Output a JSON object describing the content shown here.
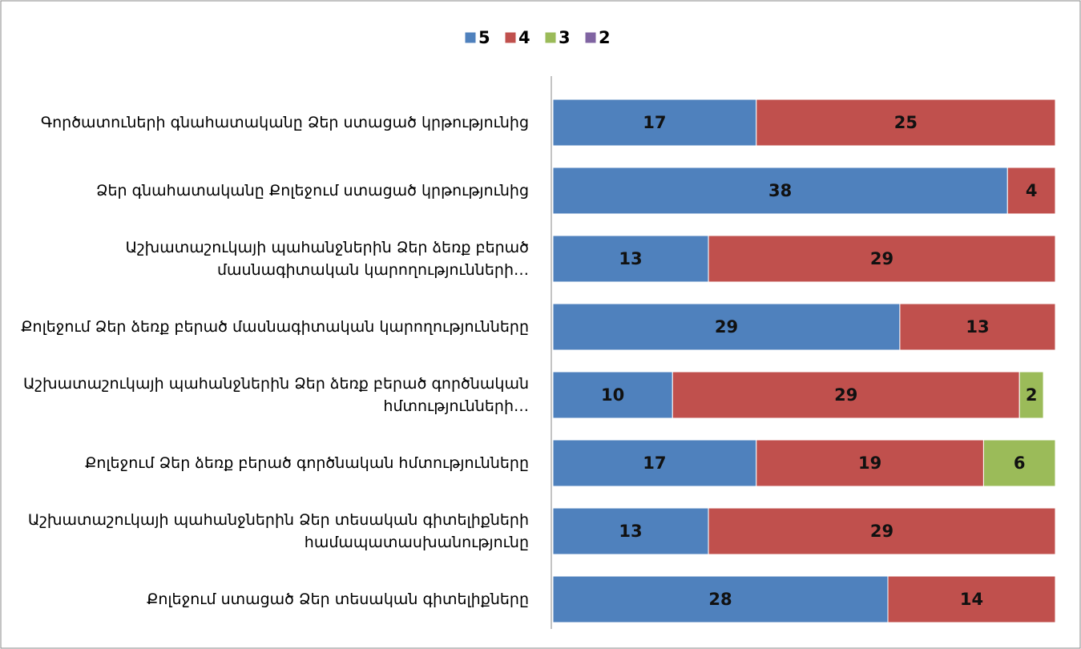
{
  "chart_data": {
    "type": "stacked-bar-horizontal",
    "categories": [
      "Գործատուների  գնահատականը Ձեր ստացած կրթությունից",
      "Ձեր գնահատականը Քոլեջում  ստացած կրթությունից",
      "Աշխատաշուկայի պահանջներին Ձեր ձեռք բերած մասնագիտական կարողությունների…",
      "Քոլեջում Ձեր ձեռք բերած մասնագիտական կարողությունները",
      "Աշխատաշուկայի պահանջներին Ձեր  ձեռք բերած  գործնական  հմտությունների…",
      "Քոլեջում Ձեր ձեռք  բերած գործնական հմտությունները",
      "Աշխատաշուկայի պահանջներին Ձեր տեսական գիտելիքների  համապատասխանությունը",
      "Քոլեջում  ստացած Ձեր  տեսական գիտելիքները"
    ],
    "series": [
      {
        "name": "5",
        "color": "#4f81bd",
        "values": [
          17,
          38,
          13,
          29,
          10,
          17,
          13,
          28
        ]
      },
      {
        "name": "4",
        "color": "#c0504d",
        "values": [
          25,
          4,
          29,
          13,
          29,
          19,
          29,
          14
        ]
      },
      {
        "name": "3",
        "color": "#9bbb59",
        "values": [
          null,
          null,
          null,
          null,
          2,
          6,
          null,
          null
        ]
      },
      {
        "name": "2",
        "color": "#8064a2",
        "values": [
          null,
          null,
          null,
          null,
          null,
          null,
          null,
          null
        ]
      }
    ],
    "legend": "top"
  }
}
